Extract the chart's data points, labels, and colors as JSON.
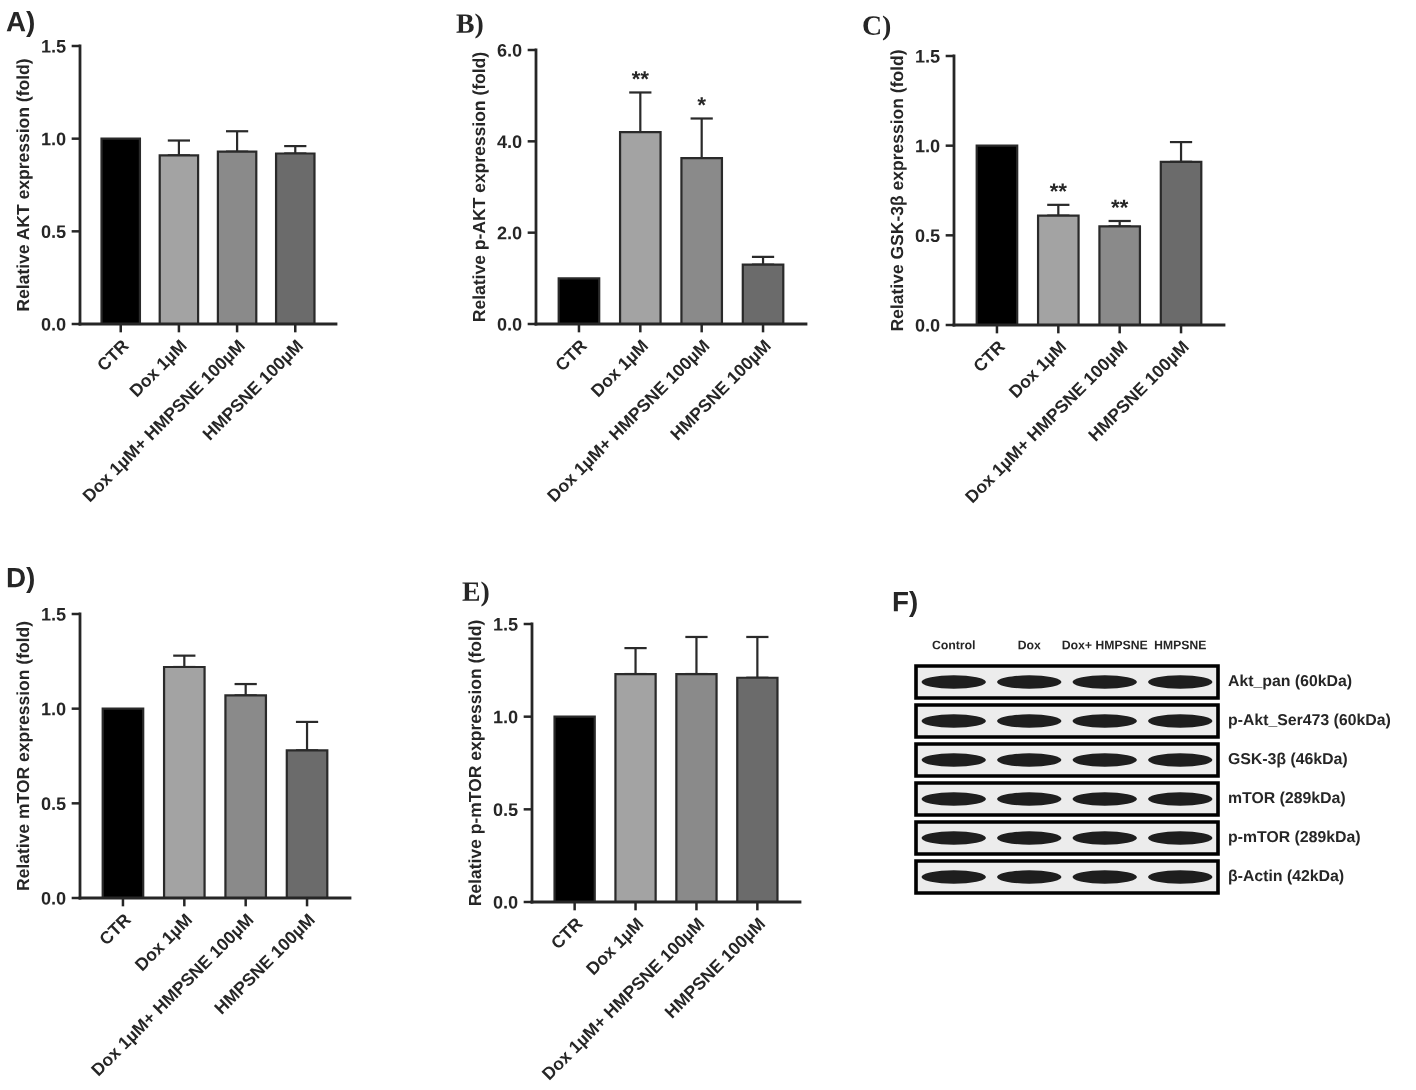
{
  "chart_data": [
    {
      "type": "bar",
      "title": "A)",
      "ylabel": "Relative AKT expression (fold)",
      "categories": [
        "CTR",
        "Dox 1µM",
        "Dox 1µM+ HMPSNE 100µM",
        "HMPSNE 100µM"
      ],
      "values": [
        1.0,
        0.91,
        0.93,
        0.92
      ],
      "colors": [
        "#000000",
        "#a3a3a3",
        "#8a8a8a",
        "#6b6b6b"
      ],
      "errors": [
        null,
        [
          0.91,
          0.99
        ],
        [
          0.93,
          1.04
        ],
        [
          0.92,
          0.96
        ]
      ],
      "ylim": [
        0,
        1.5
      ],
      "yticks": [
        {
          "value": 0,
          "label": "0.0"
        },
        {
          "value": 0.5,
          "label": "0.5"
        },
        {
          "value": 1,
          "label": "1.0"
        },
        {
          "value": 1.5,
          "label": "1.5"
        }
      ]
    },
    {
      "type": "bar",
      "title": "B)",
      "ylabel": "Relative p-AKT expression (fold)",
      "categories": [
        "CTR",
        "Dox 1µM",
        "Dox 1µM+ HMPSNE 100µM",
        "HMPSNE 100µM"
      ],
      "values": [
        1.0,
        4.2,
        3.63,
        1.3
      ],
      "colors": [
        "#000000",
        "#a3a3a3",
        "#8a8a8a",
        "#6b6b6b"
      ],
      "errors": [
        null,
        [
          4.2,
          5.07
        ],
        [
          3.63,
          4.5
        ],
        [
          1.3,
          1.47
        ]
      ],
      "ylim": [
        0,
        6
      ],
      "yticks": [
        {
          "value": 0,
          "label": "0.0"
        },
        {
          "value": 2,
          "label": "2.0"
        },
        {
          "value": 4,
          "label": "4.0"
        },
        {
          "value": 6,
          "label": "6.0"
        }
      ],
      "annotations": [
        {
          "text": "**",
          "x": "Dox 1µM",
          "y": 5.07
        },
        {
          "text": "*",
          "x": "Dox 1µM+ HMPSNE 100µM",
          "y": 4.5
        }
      ]
    },
    {
      "type": "bar",
      "title": "C)",
      "ylabel": "Relative GSK-3β expression (fold)",
      "categories": [
        "CTR",
        "Dox 1µM",
        "Dox 1µM+ HMPSNE 100µM",
        "HMPSNE 100µM"
      ],
      "values": [
        1.0,
        0.61,
        0.55,
        0.91
      ],
      "colors": [
        "#000000",
        "#a3a3a3",
        "#8a8a8a",
        "#6b6b6b"
      ],
      "errors": [
        null,
        [
          0.61,
          0.67
        ],
        [
          0.55,
          0.58
        ],
        [
          0.91,
          1.02
        ]
      ],
      "ylim": [
        0,
        1.5
      ],
      "yticks": [
        {
          "value": 0,
          "label": "0.0"
        },
        {
          "value": 0.5,
          "label": "0.5"
        },
        {
          "value": 1,
          "label": "1.0"
        },
        {
          "value": 1.5,
          "label": "1.5"
        }
      ],
      "annotations": [
        {
          "text": "**",
          "x": "Dox 1µM",
          "y": 0.67
        },
        {
          "text": "**",
          "x": "Dox 1µM+ HMPSNE 100µM",
          "y": 0.58
        }
      ]
    },
    {
      "type": "bar",
      "title": "D)",
      "ylabel": "Relative mTOR expression (fold)",
      "categories": [
        "CTR",
        "Dox 1µM",
        "Dox 1µM+ HMPSNE 100µM",
        "HMPSNE 100µM"
      ],
      "values": [
        1.0,
        1.22,
        1.07,
        0.78
      ],
      "colors": [
        "#000000",
        "#a3a3a3",
        "#8a8a8a",
        "#6b6b6b"
      ],
      "errors": [
        null,
        [
          1.22,
          1.28
        ],
        [
          1.07,
          1.13
        ],
        [
          0.78,
          0.93
        ]
      ],
      "ylim": [
        0,
        1.5
      ],
      "yticks": [
        {
          "value": 0,
          "label": "0.0"
        },
        {
          "value": 0.5,
          "label": "0.5"
        },
        {
          "value": 1,
          "label": "1.0"
        },
        {
          "value": 1.5,
          "label": "1.5"
        }
      ]
    },
    {
      "type": "bar",
      "title": "E)",
      "ylabel": "Relative p-mTOR expression (fold)",
      "categories": [
        "CTR",
        "Dox 1µM",
        "Dox 1µM+ HMPSNE 100µM",
        "HMPSNE 100µM"
      ],
      "values": [
        1.0,
        1.23,
        1.23,
        1.21
      ],
      "colors": [
        "#000000",
        "#a3a3a3",
        "#8a8a8a",
        "#6b6b6b"
      ],
      "errors": [
        null,
        [
          1.23,
          1.37
        ],
        [
          1.23,
          1.43
        ],
        [
          1.21,
          1.43
        ]
      ],
      "ylim": [
        0,
        1.5
      ],
      "yticks": [
        {
          "value": 0,
          "label": "0.0"
        },
        {
          "value": 0.5,
          "label": "0.5"
        },
        {
          "value": 1,
          "label": "1.0"
        },
        {
          "value": 1.5,
          "label": "1.5"
        }
      ]
    },
    {
      "type": "other",
      "title": "F)",
      "categories": [
        "Control",
        "Dox",
        "Dox+ HMPSNE",
        "HMPSNE"
      ],
      "annotations": [
        "Akt_pan (60kDa)",
        "p-Akt_Ser473 (60kDa)",
        "GSK-3β (46kDa)",
        "mTOR (289kDa)",
        "p-mTOR (289kDa)",
        "β-Actin (42kDa)"
      ]
    }
  ]
}
